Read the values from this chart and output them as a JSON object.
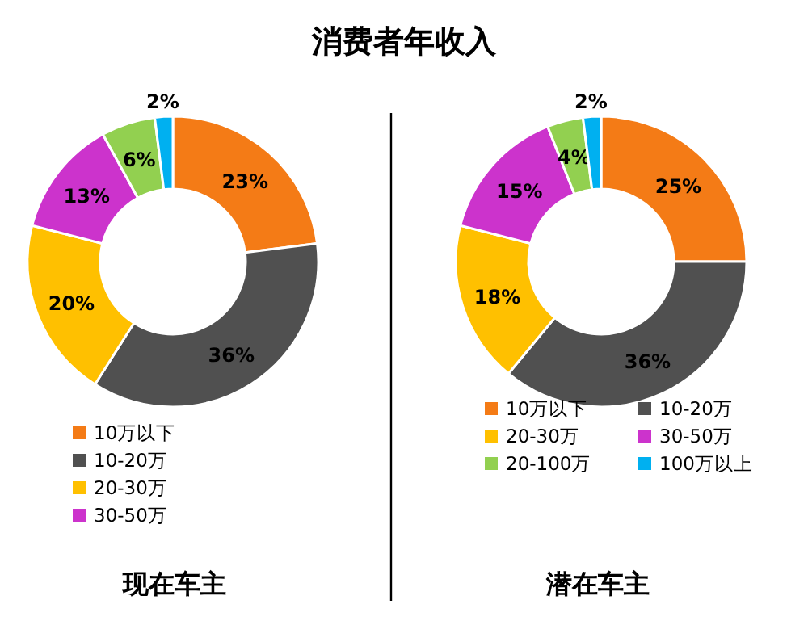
{
  "chart_data": [
    {
      "type": "donut",
      "title": "消费者年收入",
      "xlabel": "现在车主",
      "categories": [
        "10万以下",
        "10-20万",
        "20-30万",
        "30-50万",
        null,
        null
      ],
      "values": [
        23,
        36,
        20,
        13,
        6,
        2
      ],
      "value_labels": [
        "23%",
        "36%",
        "20%",
        "13%",
        "6%",
        "2%"
      ],
      "colors": [
        "#f47b16",
        "#505050",
        "#ffc000",
        "#cc33cc",
        "#92d050",
        "#00b0f0"
      ],
      "legend": "bottom"
    },
    {
      "type": "donut",
      "xlabel": "潜在车主",
      "categories": [
        "10万以下",
        "10-20万",
        "20-30万",
        "30-50万",
        "20-100万",
        "100万以上"
      ],
      "values": [
        25,
        36,
        18,
        15,
        4,
        2
      ],
      "value_labels": [
        "25%",
        "36%",
        "18%",
        "15%",
        "4%",
        "2%"
      ],
      "colors": [
        "#f47b16",
        "#505050",
        "#ffc000",
        "#cc33cc",
        "#92d050",
        "#00b0f0"
      ],
      "legend": "bottom"
    }
  ]
}
